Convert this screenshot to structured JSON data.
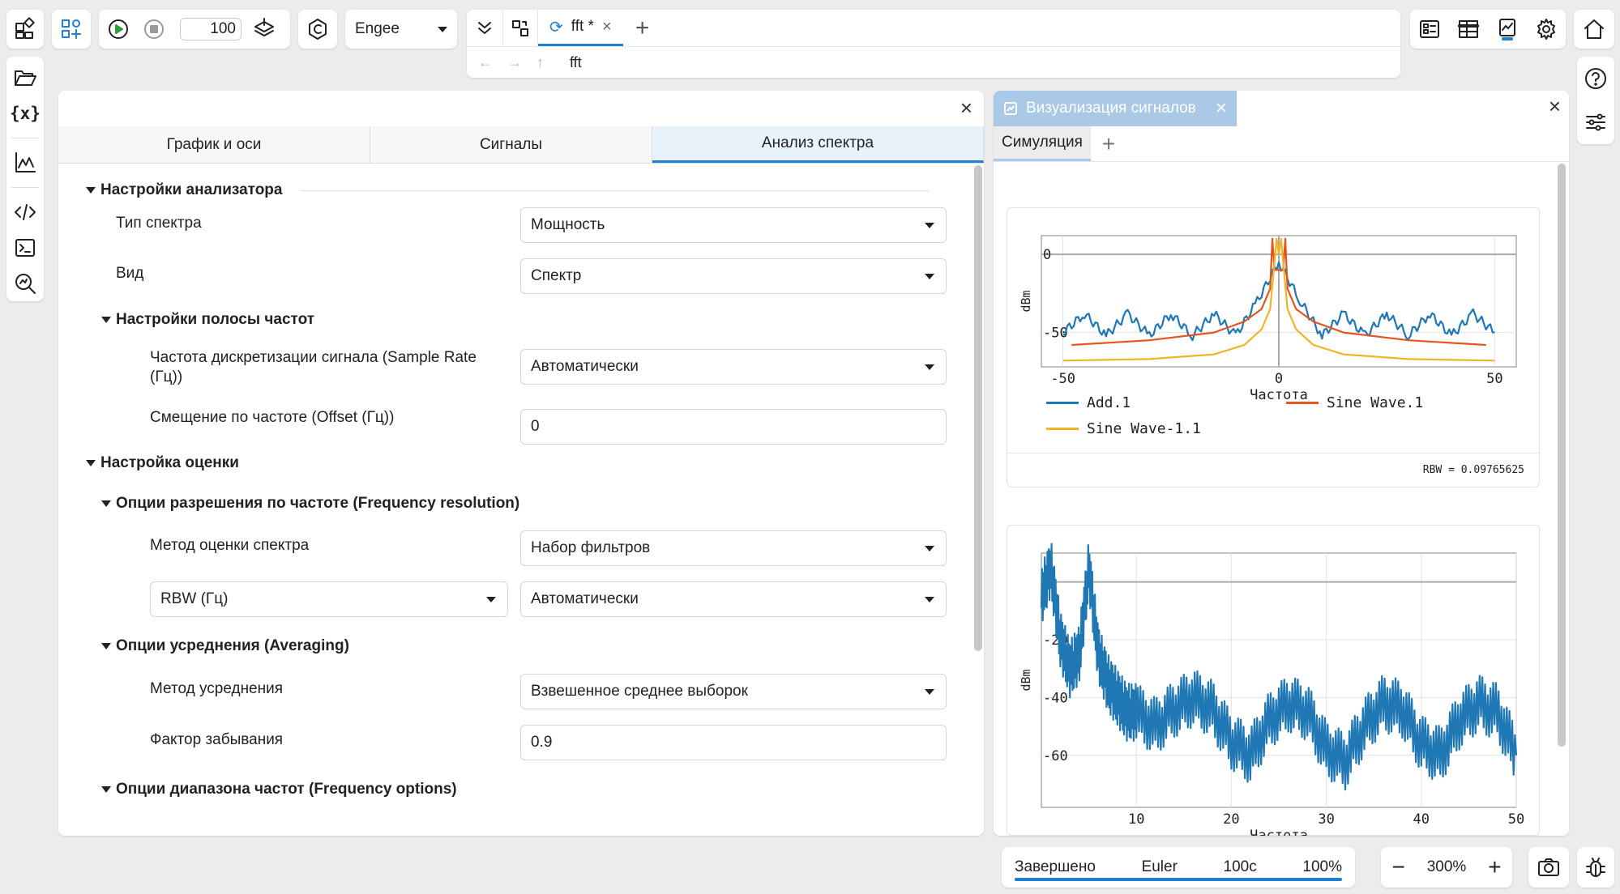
{
  "toolbar": {
    "step_value": "100",
    "solver_select": "Engee",
    "doc_tab_label": "fft *",
    "address_path": "fft"
  },
  "settings": {
    "tabs": [
      "График и оси",
      "Сигналы",
      "Анализ спектра"
    ],
    "active_tab": 2,
    "sections": {
      "analyzer": "Настройки анализатора",
      "band": "Настройки полосы частот",
      "estimation": "Настройка оценки",
      "resolution": "Опции разрешения по частоте (Frequency resolution)",
      "averaging": "Опции усреднения (Averaging)",
      "freq_options": "Опции диапазона частот (Frequency options)"
    },
    "fields": {
      "spectrum_type_label": "Тип спектра",
      "spectrum_type_value": "Мощность",
      "view_label": "Вид",
      "view_value": "Спектр",
      "sample_rate_label": "Частота дискретизации сигнала (Sample Rate (Гц))",
      "sample_rate_value": "Автоматически",
      "offset_label": "Смещение по частоте (Offset (Гц))",
      "offset_value": "0",
      "method_label": "Метод оценки спектра",
      "method_value": "Набор фильтров",
      "rbw_select": "RBW (Гц)",
      "rbw_value": "Автоматически",
      "avg_method_label": "Метод усреднения",
      "avg_method_value": "Взвешенное среднее выборок",
      "forget_label": "Фактор забывания",
      "forget_value": "0.9"
    }
  },
  "viz": {
    "tab_title": "Визуализация сигналов",
    "subtab_label": "Симуляция",
    "rbw_note": "RBW = 0.09765625"
  },
  "chart_data": [
    {
      "type": "line",
      "xlabel": "Частота",
      "ylabel": "dBm",
      "xlim": [
        -55,
        55
      ],
      "ylim": [
        -72,
        12
      ],
      "xticks": [
        "-50",
        "0",
        "50"
      ],
      "yticks": [
        "0",
        "-50"
      ],
      "grid": true,
      "legend_position": "bottom",
      "series": [
        {
          "name": "Add.1",
          "color": "#1f77b4",
          "description": "lobes",
          "x": [
            -50,
            -45,
            -40,
            -35,
            -30,
            -25,
            -20,
            -15,
            -10,
            -5,
            0,
            5,
            10,
            15,
            20,
            25,
            30,
            35,
            40,
            45,
            50
          ],
          "y": [
            -50,
            -38,
            -52,
            -38,
            -52,
            -38,
            -52,
            -38,
            -52,
            -30,
            -5,
            -30,
            -52,
            -38,
            -52,
            -38,
            -52,
            -38,
            -52,
            -38,
            -50
          ]
        },
        {
          "name": "Sine Wave.1",
          "color": "#e2561f",
          "x": [
            -48,
            -30,
            -15,
            -8,
            -4,
            -2,
            -1.5,
            -1.5,
            -1,
            1,
            1.5,
            1.5,
            2,
            4,
            8,
            15,
            30,
            48
          ],
          "y": [
            -58,
            -55,
            -50,
            -43,
            -35,
            -22,
            10,
            10,
            -10,
            -10,
            10,
            10,
            -22,
            -35,
            -43,
            -50,
            -55,
            -58
          ]
        },
        {
          "name": "Sine Wave-1.1",
          "color": "#f0b429",
          "x": [
            -50,
            -30,
            -15,
            -8,
            -4,
            -2,
            -0.5,
            -0.5,
            0,
            0.5,
            0.5,
            2,
            4,
            8,
            15,
            30,
            50
          ],
          "y": [
            -68,
            -67,
            -64,
            -58,
            -48,
            -35,
            10,
            10,
            0,
            10,
            10,
            -35,
            -48,
            -58,
            -64,
            -67,
            -68
          ]
        }
      ]
    },
    {
      "type": "line",
      "xlabel": "Частота",
      "ylabel": "dBm",
      "xlim": [
        0,
        50
      ],
      "ylim": [
        -78,
        10
      ],
      "xticks": [
        "10",
        "20",
        "30",
        "40",
        "50"
      ],
      "yticks": [
        "0",
        "-20",
        "-40",
        "-60"
      ],
      "grid": true,
      "series": [
        {
          "color": "#1f77b4",
          "x": [
            0,
            1,
            2,
            3,
            4,
            5,
            6,
            7,
            8,
            9,
            10,
            12,
            14,
            16,
            18,
            20,
            22,
            24,
            26,
            28,
            30,
            32,
            34,
            36,
            38,
            40,
            42,
            44,
            46,
            48,
            50
          ],
          "y": [
            -5,
            5,
            -20,
            -30,
            -25,
            5,
            -25,
            -35,
            -40,
            -45,
            -45,
            -50,
            -44,
            -40,
            -44,
            -55,
            -60,
            -48,
            -42,
            -45,
            -58,
            -62,
            -50,
            -42,
            -44,
            -56,
            -60,
            -48,
            -42,
            -45,
            -60
          ]
        }
      ]
    }
  ],
  "status": {
    "state": "Завершено",
    "solver": "Euler",
    "time": "100с",
    "percent": "100%",
    "zoom": "300%"
  }
}
